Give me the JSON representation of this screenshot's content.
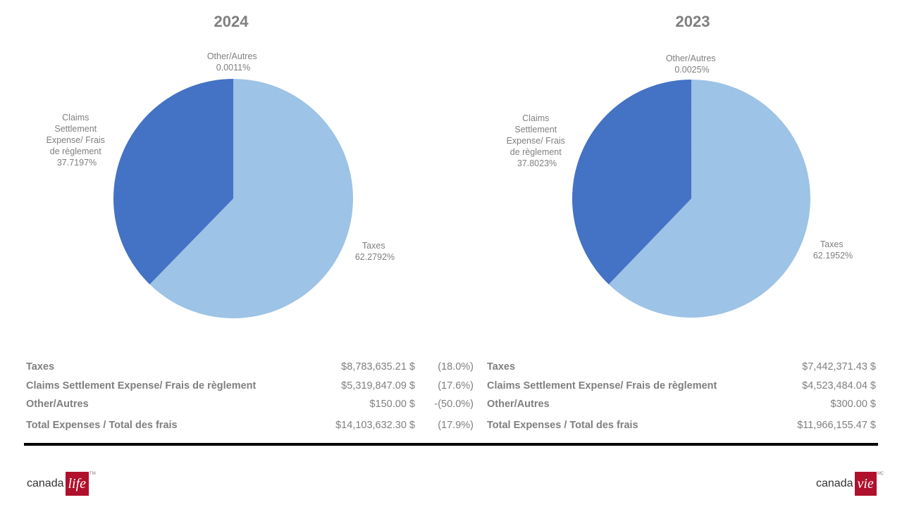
{
  "chart_data": [
    {
      "type": "pie",
      "title": "2024",
      "slices": [
        {
          "label": "Taxes",
          "value": 62.2792,
          "display": "62.2792%",
          "color": "#9dc3e6"
        },
        {
          "label": "Claims Settlement Expense/ Frais de règlement",
          "value": 37.7197,
          "display": "37.7197%",
          "color": "#4472c4"
        },
        {
          "label": "Other/Autres",
          "value": 0.0011,
          "display": "0.0011%",
          "color": "#2f5597"
        }
      ]
    },
    {
      "type": "pie",
      "title": "2023",
      "slices": [
        {
          "label": "Taxes",
          "value": 62.1952,
          "display": "62.1952%",
          "color": "#9dc3e6"
        },
        {
          "label": "Claims Settlement Expense/ Frais de règlement",
          "value": 37.8023,
          "display": "37.8023%",
          "color": "#4472c4"
        },
        {
          "label": "Other/Autres",
          "value": 0.0025,
          "display": "0.0025%",
          "color": "#2f5597"
        }
      ]
    }
  ],
  "labels": {
    "pie_2024": {
      "other": [
        "Other/Autres",
        "0.0011%"
      ],
      "claims": [
        "Claims",
        "Settlement",
        "Expense/ Frais",
        "de règlement",
        "37.7197%"
      ],
      "taxes": [
        "Taxes",
        "62.2792%"
      ]
    },
    "pie_2023": {
      "other": [
        "Other/Autres",
        "0.0025%"
      ],
      "claims": [
        "Claims",
        "Settlement",
        "Expense/ Frais",
        "de règlement",
        "37.8023%"
      ],
      "taxes": [
        "Taxes",
        "62.1952%"
      ]
    }
  },
  "table_2024": {
    "rows": [
      {
        "label": "Taxes",
        "amount": "$8,783,635.21 $",
        "change": "(18.0%)"
      },
      {
        "label": "Claims Settlement Expense/ Frais de règlement",
        "amount": "$5,319,847.09 $",
        "change": "(17.6%)"
      },
      {
        "label": "Other/Autres",
        "amount": "$150.00 $",
        "change": "-(50.0%)"
      },
      {
        "label": "Total Expenses / Total des frais",
        "amount": "$14,103,632.30 $",
        "change": "(17.9%)"
      }
    ]
  },
  "table_2023": {
    "rows": [
      {
        "label": "Taxes",
        "amount": "$7,442,371.43 $"
      },
      {
        "label": "Claims Settlement Expense/ Frais de règlement",
        "amount": "$4,523,484.04 $"
      },
      {
        "label": "Other/Autres",
        "amount": "$300.00 $"
      },
      {
        "label": "Total Expenses / Total des frais",
        "amount": "$11,966,155.47 $"
      }
    ]
  },
  "logos": {
    "left_word": "canada",
    "left_box": "life",
    "left_tm": "TM",
    "right_word": "canada",
    "right_box": "vie",
    "right_tm": "MC"
  },
  "colors": {
    "taxes": "#9dc3e6",
    "claims": "#4472c4",
    "rule": "#000000",
    "brand": "#b0102b"
  }
}
